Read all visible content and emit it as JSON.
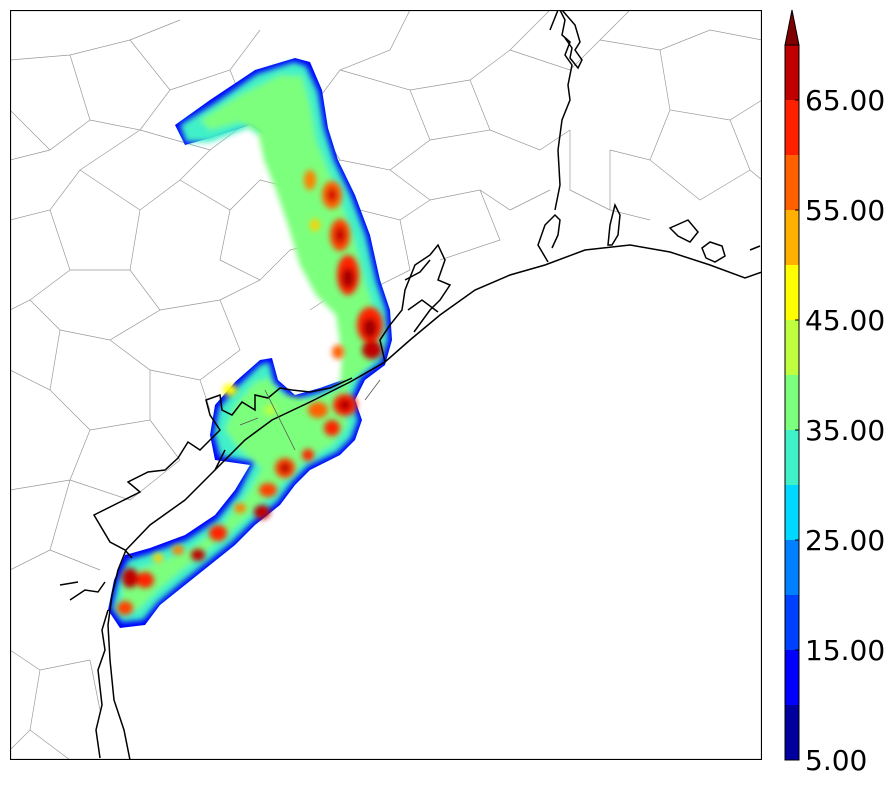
{
  "map": {
    "colors": {
      "land": "#ffffff",
      "county_lines": "#9a9a9a",
      "coastline": "#000000",
      "frame": "#000000"
    }
  },
  "colorbar": {
    "ticks": [
      "5.00",
      "15.00",
      "25.00",
      "35.00",
      "45.00",
      "55.00",
      "65.00"
    ],
    "levels": [
      5,
      10,
      15,
      20,
      25,
      30,
      35,
      40,
      45,
      50,
      55,
      60,
      65,
      70
    ],
    "colors": [
      "#00009f",
      "#0000ff",
      "#0040ff",
      "#0080ff",
      "#00d8ff",
      "#40f0c8",
      "#7cff7c",
      "#c0ff40",
      "#ffff00",
      "#ffb000",
      "#ff6000",
      "#ff2000",
      "#c00000",
      "#800000"
    ],
    "extend": "max"
  }
}
